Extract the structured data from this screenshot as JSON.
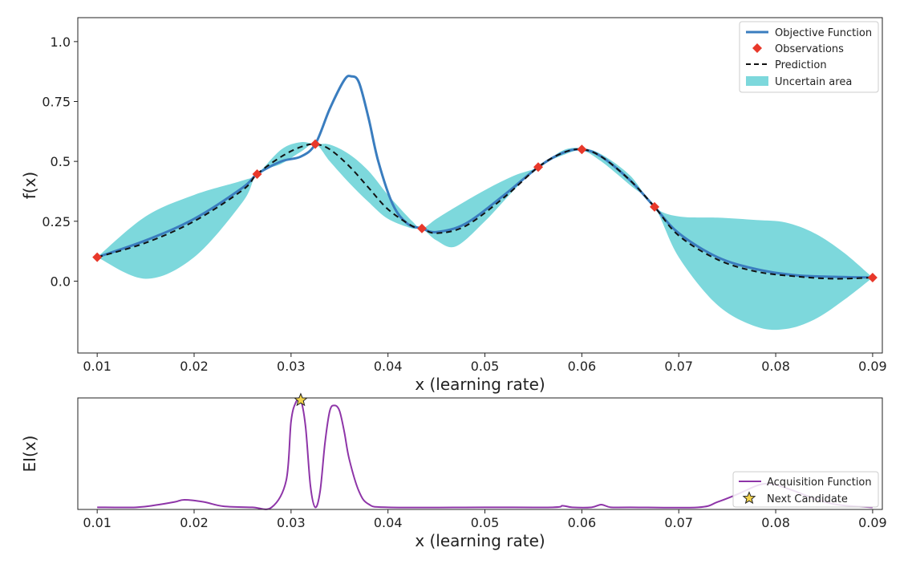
{
  "colors": {
    "objective": "#3a7dbf",
    "observation": "#e8382a",
    "prediction": "#111111",
    "uncertain": "#7dd8dc",
    "acquisition": "#8e35a8",
    "candidate": "#f2d24b"
  },
  "chart_data": [
    {
      "type": "line",
      "xlabel": "x (learning rate)",
      "ylabel": "f(x)",
      "xlim": [
        0.008,
        0.091
      ],
      "ylim": [
        -0.3,
        1.1
      ],
      "xticks": [
        0.01,
        0.02,
        0.03,
        0.04,
        0.05,
        0.06,
        0.07,
        0.08,
        0.09
      ],
      "xtick_labels": [
        "0.01",
        "0.02",
        "0.03",
        "0.04",
        "0.05",
        "0.06",
        "0.07",
        "0.08",
        "0.09"
      ],
      "yticks": [
        0.0,
        0.25,
        0.5,
        0.75,
        1.0
      ],
      "ytick_labels": [
        "0.0",
        "0.25",
        "0.5",
        "0.75",
        "1.0"
      ],
      "legend": [
        "Objective Function",
        "Observations",
        "Prediction",
        "Uncertain area"
      ],
      "legend_position": "top-right",
      "series": [
        {
          "name": "Objective Function",
          "x": [
            0.01,
            0.015,
            0.02,
            0.025,
            0.0265,
            0.029,
            0.031,
            0.0325,
            0.034,
            0.0355,
            0.0362,
            0.037,
            0.038,
            0.039,
            0.0405,
            0.042,
            0.0435,
            0.045,
            0.048,
            0.052,
            0.0555,
            0.058,
            0.06,
            0.062,
            0.065,
            0.0675,
            0.07,
            0.074,
            0.078,
            0.082,
            0.086,
            0.09
          ],
          "y": [
            0.1,
            0.17,
            0.26,
            0.39,
            0.447,
            0.5,
            0.52,
            0.572,
            0.72,
            0.84,
            0.855,
            0.83,
            0.68,
            0.5,
            0.32,
            0.24,
            0.22,
            0.205,
            0.24,
            0.36,
            0.476,
            0.535,
            0.55,
            0.52,
            0.42,
            0.31,
            0.2,
            0.1,
            0.05,
            0.025,
            0.018,
            0.015
          ]
        },
        {
          "name": "Prediction",
          "x": [
            0.01,
            0.015,
            0.02,
            0.025,
            0.0265,
            0.029,
            0.031,
            0.0325,
            0.034,
            0.036,
            0.038,
            0.04,
            0.0425,
            0.0435,
            0.045,
            0.048,
            0.052,
            0.0555,
            0.058,
            0.06,
            0.062,
            0.065,
            0.0675,
            0.07,
            0.074,
            0.078,
            0.082,
            0.086,
            0.09
          ],
          "y": [
            0.1,
            0.16,
            0.25,
            0.38,
            0.447,
            0.52,
            0.56,
            0.572,
            0.55,
            0.48,
            0.39,
            0.3,
            0.23,
            0.22,
            0.2,
            0.23,
            0.35,
            0.476,
            0.535,
            0.55,
            0.52,
            0.42,
            0.31,
            0.19,
            0.09,
            0.04,
            0.02,
            0.01,
            0.015
          ]
        },
        {
          "name": "Observations",
          "x": [
            0.01,
            0.0265,
            0.0325,
            0.0435,
            0.0555,
            0.06,
            0.0675,
            0.09
          ],
          "y": [
            0.1,
            0.447,
            0.572,
            0.22,
            0.476,
            0.55,
            0.31,
            0.015
          ]
        },
        {
          "name": "Uncertain area",
          "x": [
            0.01,
            0.015,
            0.02,
            0.025,
            0.0265,
            0.029,
            0.031,
            0.0325,
            0.034,
            0.036,
            0.038,
            0.04,
            0.0425,
            0.0435,
            0.045,
            0.047,
            0.05,
            0.053,
            0.0555,
            0.058,
            0.06,
            0.062,
            0.065,
            0.0675,
            0.07,
            0.074,
            0.078,
            0.081,
            0.084,
            0.087,
            0.09
          ],
          "y_upper": [
            0.1,
            0.27,
            0.36,
            0.42,
            0.447,
            0.55,
            0.58,
            0.572,
            0.57,
            0.53,
            0.46,
            0.36,
            0.25,
            0.22,
            0.26,
            0.31,
            0.38,
            0.44,
            0.476,
            0.545,
            0.555,
            0.53,
            0.44,
            0.31,
            0.27,
            0.265,
            0.255,
            0.245,
            0.2,
            0.12,
            0.015
          ],
          "y_lower": [
            0.1,
            0.01,
            0.1,
            0.33,
            0.447,
            0.49,
            0.54,
            0.572,
            0.5,
            0.41,
            0.33,
            0.26,
            0.22,
            0.22,
            0.17,
            0.145,
            0.25,
            0.38,
            0.476,
            0.525,
            0.545,
            0.5,
            0.4,
            0.31,
            0.1,
            -0.1,
            -0.19,
            -0.2,
            -0.16,
            -0.08,
            0.015
          ]
        }
      ]
    },
    {
      "type": "line",
      "xlabel": "x (learning rate)",
      "ylabel": "EI(x)",
      "xlim": [
        0.008,
        0.091
      ],
      "ylim": [
        -0.02,
        1.02
      ],
      "xticks": [
        0.01,
        0.02,
        0.03,
        0.04,
        0.05,
        0.06,
        0.07,
        0.08,
        0.09
      ],
      "xtick_labels": [
        "0.01",
        "0.02",
        "0.03",
        "0.04",
        "0.05",
        "0.06",
        "0.07",
        "0.08",
        "0.09"
      ],
      "legend": [
        "Acquisition Function",
        "Next Candidate"
      ],
      "legend_position": "bottom-right",
      "series": [
        {
          "name": "Acquisition Function",
          "x": [
            0.01,
            0.014,
            0.016,
            0.018,
            0.019,
            0.021,
            0.023,
            0.026,
            0.028,
            0.0295,
            0.03,
            0.0305,
            0.031,
            0.0315,
            0.032,
            0.0325,
            0.033,
            0.0335,
            0.034,
            0.0345,
            0.035,
            0.0355,
            0.036,
            0.037,
            0.038,
            0.04,
            0.05,
            0.057,
            0.058,
            0.059,
            0.061,
            0.062,
            0.063,
            0.065,
            0.072,
            0.074,
            0.076,
            0.078,
            0.079,
            0.08,
            0.082,
            0.084,
            0.086,
            0.088,
            0.09
          ],
          "y": [
            0.0,
            0.0,
            0.02,
            0.05,
            0.07,
            0.05,
            0.01,
            0.0,
            0.0,
            0.25,
            0.8,
            0.98,
            1.0,
            0.75,
            0.2,
            0.0,
            0.15,
            0.6,
            0.9,
            0.95,
            0.9,
            0.7,
            0.45,
            0.15,
            0.03,
            0.0,
            0.0,
            0.0,
            0.015,
            0.0,
            0.0,
            0.025,
            0.0,
            0.0,
            0.0,
            0.05,
            0.12,
            0.2,
            0.22,
            0.21,
            0.15,
            0.08,
            0.03,
            0.01,
            0.0
          ]
        },
        {
          "name": "Next Candidate",
          "x": [
            0.031
          ],
          "y": [
            1.0
          ]
        }
      ]
    }
  ]
}
